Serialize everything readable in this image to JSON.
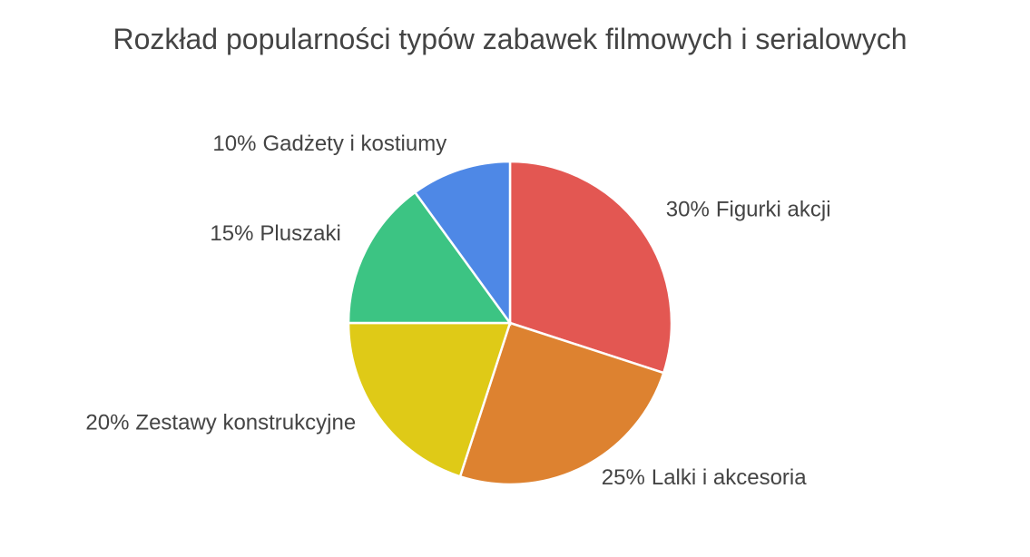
{
  "chart_data": {
    "type": "pie",
    "title": "Rozkład popularności typów zabawek filmowych i serialowych",
    "categories": [
      "Figurki akcji",
      "Lalki i akcesoria",
      "Zestawy konstrukcyjne",
      "Pluszaki",
      "Gadżety i kostiumy"
    ],
    "values": [
      30,
      25,
      20,
      15,
      10
    ],
    "value_labels": [
      "30%",
      "25%",
      "20%",
      "15%",
      "10%"
    ],
    "colors": [
      "#e35752",
      "#dd8230",
      "#dfca17",
      "#3cc483",
      "#4e88e6"
    ]
  }
}
